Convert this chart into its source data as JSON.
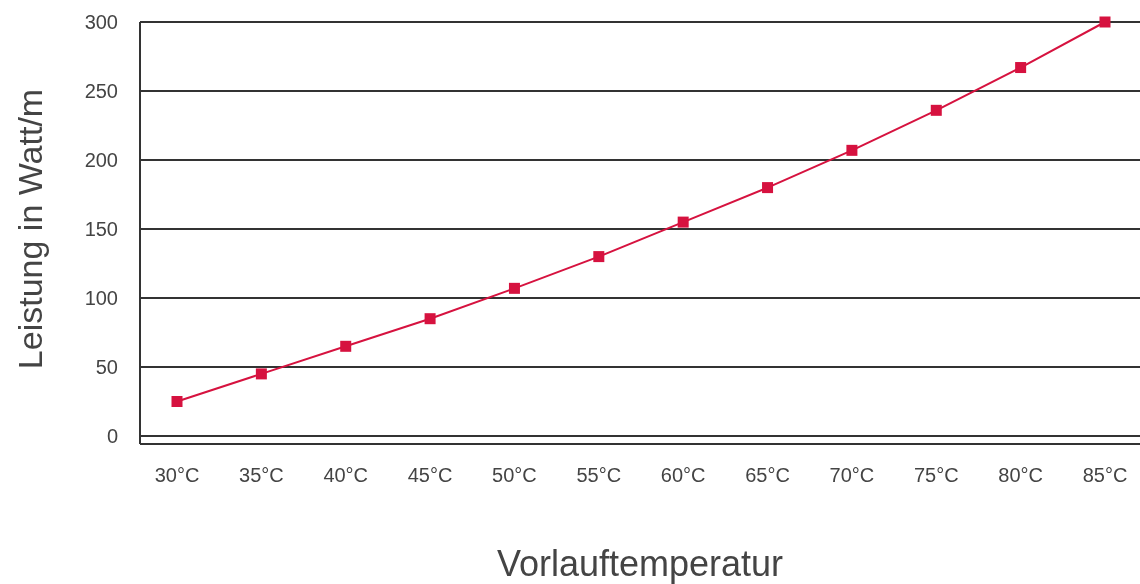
{
  "chart_data": {
    "type": "line",
    "xlabel": "Vorlauftemperatur",
    "ylabel": "Leistung in Watt/m",
    "categories": [
      "30°C",
      "35°C",
      "40°C",
      "45°C",
      "50°C",
      "55°C",
      "60°C",
      "65°C",
      "70°C",
      "75°C",
      "80°C",
      "85°C"
    ],
    "series": [
      {
        "color": "#d6123f",
        "values": [
          25,
          45,
          65,
          85,
          107,
          130,
          155,
          180,
          207,
          236,
          267,
          300
        ]
      }
    ],
    "ylim": [
      0,
      300
    ],
    "yticks": [
      0,
      50,
      100,
      150,
      200,
      250,
      300
    ],
    "grid": "y",
    "marker": "square",
    "line_style": "solid"
  }
}
